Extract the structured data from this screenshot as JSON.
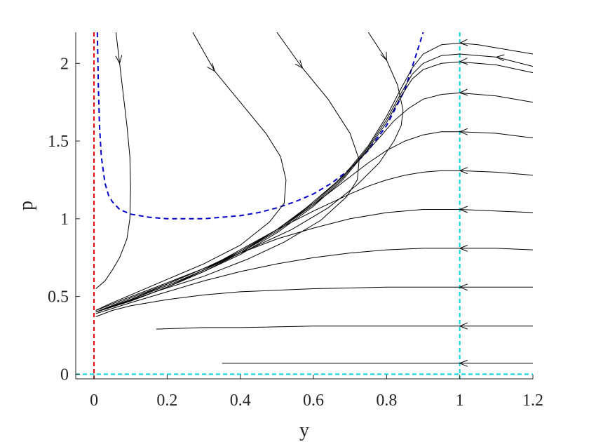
{
  "chart_data": {
    "type": "line",
    "xlabel": "y",
    "ylabel": "p",
    "xlim": [
      -0.05,
      1.2
    ],
    "ylim": [
      -0.03,
      2.2
    ],
    "xticks": [
      0,
      0.2,
      0.4,
      0.6,
      0.8,
      1,
      1.2
    ],
    "xtick_labels": [
      "0",
      "0.2",
      "0.4",
      "0.6",
      "0.8",
      "1",
      "1.2"
    ],
    "yticks": [
      0,
      0.5,
      1,
      1.5,
      2
    ],
    "ytick_labels": [
      "0",
      "0.5",
      "1",
      "1.5",
      "2"
    ],
    "grid": false,
    "colors": {
      "trajectory": "#000000",
      "nullcline_blue": "#0000cc",
      "nullcline_red": "#e60000",
      "nullcline_cyan": "#00d8e0",
      "axis": "#262626"
    },
    "reference_lines": [
      {
        "kind": "vertical",
        "x": 0,
        "color": "#e60000",
        "style": "dashed"
      },
      {
        "kind": "vertical",
        "x": 1,
        "color": "#00d8e0",
        "style": "dashed"
      },
      {
        "kind": "horizontal",
        "y": 0,
        "color": "#00d8e0",
        "style": "dashed"
      }
    ],
    "blue_dashed_curve": {
      "x": [
        0.009,
        0.012,
        0.015,
        0.02,
        0.03,
        0.04,
        0.05,
        0.07,
        0.1,
        0.15,
        0.2,
        0.25,
        0.3,
        0.35,
        0.4,
        0.45,
        0.5,
        0.55,
        0.6,
        0.65,
        0.7,
        0.75,
        0.8,
        0.85,
        0.88,
        0.9
      ],
      "y": [
        2.2,
        1.85,
        1.6,
        1.4,
        1.23,
        1.15,
        1.11,
        1.06,
        1.03,
        1.01,
        1.0,
        1.0,
        1.0,
        1.01,
        1.02,
        1.04,
        1.07,
        1.11,
        1.16,
        1.23,
        1.32,
        1.44,
        1.6,
        1.83,
        2.05,
        2.2
      ]
    },
    "series": [
      {
        "x": [
          0.06,
          0.07,
          0.08,
          0.09,
          0.098,
          0.1,
          0.098,
          0.09,
          0.07,
          0.05,
          0.03,
          0.015,
          0.005
        ],
        "y": [
          2.2,
          2.0,
          1.8,
          1.6,
          1.4,
          1.2,
          1.0,
          0.87,
          0.75,
          0.67,
          0.6,
          0.57,
          0.55
        ],
        "arrow_at": 1
      },
      {
        "x": [
          0.27,
          0.33,
          0.4,
          0.47,
          0.51,
          0.525,
          0.52,
          0.48,
          0.4,
          0.3,
          0.2,
          0.1,
          0.04,
          0.005
        ],
        "y": [
          2.2,
          1.95,
          1.75,
          1.55,
          1.4,
          1.25,
          1.1,
          0.98,
          0.83,
          0.71,
          0.61,
          0.51,
          0.45,
          0.41
        ],
        "arrow_at": 1
      },
      {
        "x": [
          0.5,
          0.57,
          0.64,
          0.7,
          0.725,
          0.72,
          0.69,
          0.62,
          0.52,
          0.42,
          0.3,
          0.18,
          0.08,
          0.005
        ],
        "y": [
          2.2,
          1.97,
          1.77,
          1.55,
          1.38,
          1.25,
          1.14,
          0.99,
          0.85,
          0.74,
          0.63,
          0.54,
          0.46,
          0.4
        ],
        "arrow_at": 1
      },
      {
        "x": [
          0.75,
          0.8,
          0.83,
          0.845,
          0.84,
          0.82,
          0.78,
          0.72,
          0.64,
          0.54,
          0.42,
          0.3,
          0.18,
          0.08,
          0.005
        ],
        "y": [
          2.2,
          2.02,
          1.86,
          1.7,
          1.6,
          1.5,
          1.36,
          1.22,
          1.07,
          0.93,
          0.8,
          0.68,
          0.57,
          0.48,
          0.41
        ],
        "arrow_at": 1
      },
      {
        "x": [
          1.2,
          1.05,
          1.0,
          0.95,
          0.9,
          0.87,
          0.84,
          0.8,
          0.75,
          0.68,
          0.6,
          0.5,
          0.4,
          0.3,
          0.2,
          0.1,
          0.005
        ],
        "y": [
          2.06,
          2.12,
          2.13,
          2.12,
          2.06,
          1.97,
          1.84,
          1.66,
          1.47,
          1.27,
          1.1,
          0.93,
          0.79,
          0.68,
          0.58,
          0.49,
          0.4
        ],
        "arrow_at": 2
      },
      {
        "x": [
          1.2,
          1.1,
          1.0,
          0.95,
          0.9,
          0.87,
          0.84,
          0.8,
          0.75,
          0.68,
          0.6,
          0.5,
          0.4,
          0.3,
          0.2,
          0.1,
          0.005
        ],
        "y": [
          1.98,
          2.04,
          2.06,
          2.05,
          2.0,
          1.93,
          1.81,
          1.64,
          1.46,
          1.26,
          1.09,
          0.92,
          0.78,
          0.67,
          0.57,
          0.48,
          0.4
        ],
        "arrow_at": 1
      },
      {
        "x": [
          1.2,
          1.1,
          1.0,
          0.95,
          0.9,
          0.87,
          0.84,
          0.8,
          0.75,
          0.68,
          0.6,
          0.5,
          0.4,
          0.3,
          0.2,
          0.1,
          0.005
        ],
        "y": [
          1.94,
          1.99,
          2.01,
          2.0,
          1.96,
          1.9,
          1.79,
          1.62,
          1.45,
          1.25,
          1.08,
          0.91,
          0.77,
          0.66,
          0.56,
          0.47,
          0.4
        ],
        "arrow_at": 2
      },
      {
        "x": [
          1.2,
          1.1,
          1.0,
          0.95,
          0.9,
          0.86,
          0.82,
          0.78,
          0.73,
          0.66,
          0.58,
          0.5,
          0.4,
          0.3,
          0.2,
          0.1,
          0.005
        ],
        "y": [
          1.75,
          1.79,
          1.81,
          1.8,
          1.77,
          1.71,
          1.63,
          1.52,
          1.39,
          1.23,
          1.07,
          0.93,
          0.78,
          0.66,
          0.56,
          0.47,
          0.4
        ],
        "arrow_at": 2
      },
      {
        "x": [
          1.2,
          1.1,
          1.0,
          0.95,
          0.9,
          0.85,
          0.8,
          0.75,
          0.7,
          0.6,
          0.5,
          0.4,
          0.3,
          0.2,
          0.1,
          0.005
        ],
        "y": [
          1.52,
          1.55,
          1.56,
          1.56,
          1.54,
          1.5,
          1.44,
          1.36,
          1.27,
          1.09,
          0.93,
          0.79,
          0.67,
          0.56,
          0.47,
          0.4
        ],
        "arrow_at": 2
      },
      {
        "x": [
          1.2,
          1.1,
          1.0,
          0.95,
          0.9,
          0.85,
          0.8,
          0.75,
          0.7,
          0.6,
          0.5,
          0.4,
          0.3,
          0.2,
          0.1,
          0.005
        ],
        "y": [
          1.28,
          1.3,
          1.31,
          1.31,
          1.3,
          1.28,
          1.25,
          1.21,
          1.16,
          1.05,
          0.93,
          0.8,
          0.67,
          0.56,
          0.47,
          0.4
        ],
        "arrow_at": 2
      },
      {
        "x": [
          1.2,
          1.1,
          1.0,
          0.9,
          0.8,
          0.7,
          0.6,
          0.5,
          0.4,
          0.3,
          0.2,
          0.1,
          0.005
        ],
        "y": [
          1.04,
          1.05,
          1.06,
          1.06,
          1.04,
          1.0,
          0.94,
          0.87,
          0.78,
          0.68,
          0.58,
          0.48,
          0.4
        ],
        "arrow_at": 2
      },
      {
        "x": [
          1.2,
          1.1,
          1.0,
          0.9,
          0.8,
          0.7,
          0.6,
          0.5,
          0.4,
          0.3,
          0.2,
          0.1,
          0.005
        ],
        "y": [
          0.8,
          0.81,
          0.81,
          0.81,
          0.8,
          0.78,
          0.75,
          0.71,
          0.66,
          0.6,
          0.53,
          0.46,
          0.39
        ],
        "arrow_at": 2
      },
      {
        "x": [
          1.2,
          1.1,
          1.0,
          0.8,
          0.6,
          0.4,
          0.3,
          0.2,
          0.1,
          0.05,
          0.005
        ],
        "y": [
          0.56,
          0.56,
          0.56,
          0.56,
          0.55,
          0.53,
          0.51,
          0.48,
          0.44,
          0.41,
          0.37
        ],
        "arrow_at": 2
      },
      {
        "x": [
          1.2,
          1.1,
          1.0,
          0.8,
          0.6,
          0.4,
          0.3,
          0.17
        ],
        "y": [
          0.31,
          0.31,
          0.31,
          0.31,
          0.31,
          0.3,
          0.3,
          0.29
        ],
        "arrow_at": 2
      },
      {
        "x": [
          1.2,
          1.1,
          1.0,
          0.8,
          0.6,
          0.5,
          0.45,
          0.35
        ],
        "y": [
          0.07,
          0.07,
          0.07,
          0.07,
          0.07,
          0.07,
          0.07,
          0.07
        ],
        "arrow_at": 2
      }
    ]
  }
}
